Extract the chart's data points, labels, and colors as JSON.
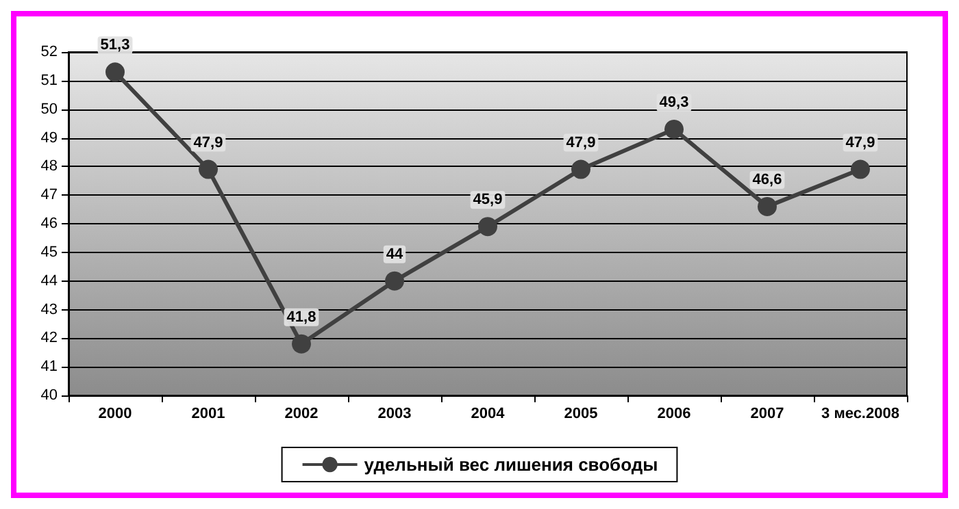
{
  "chart_data": {
    "type": "line",
    "categories": [
      "2000",
      "2001",
      "2002",
      "2003",
      "2004",
      "2005",
      "2006",
      "2007",
      "3 мес.2008"
    ],
    "series": [
      {
        "name": "удельный вес лишения свободы",
        "color": "#404040",
        "values": [
          51.3,
          47.9,
          41.8,
          44,
          45.9,
          47.9,
          49.3,
          46.6,
          47.9
        ],
        "value_labels": [
          "51,3",
          "47,9",
          "41,8",
          "44",
          "45,9",
          "47,9",
          "49,3",
          "46,6",
          "47,9"
        ]
      }
    ],
    "ylim": [
      40,
      52
    ],
    "yticks": [
      40,
      41,
      42,
      43,
      44,
      45,
      46,
      47,
      48,
      49,
      50,
      51,
      52
    ],
    "grid": "y",
    "legend": "bottom",
    "marker": "circle",
    "line_style": "solid"
  }
}
